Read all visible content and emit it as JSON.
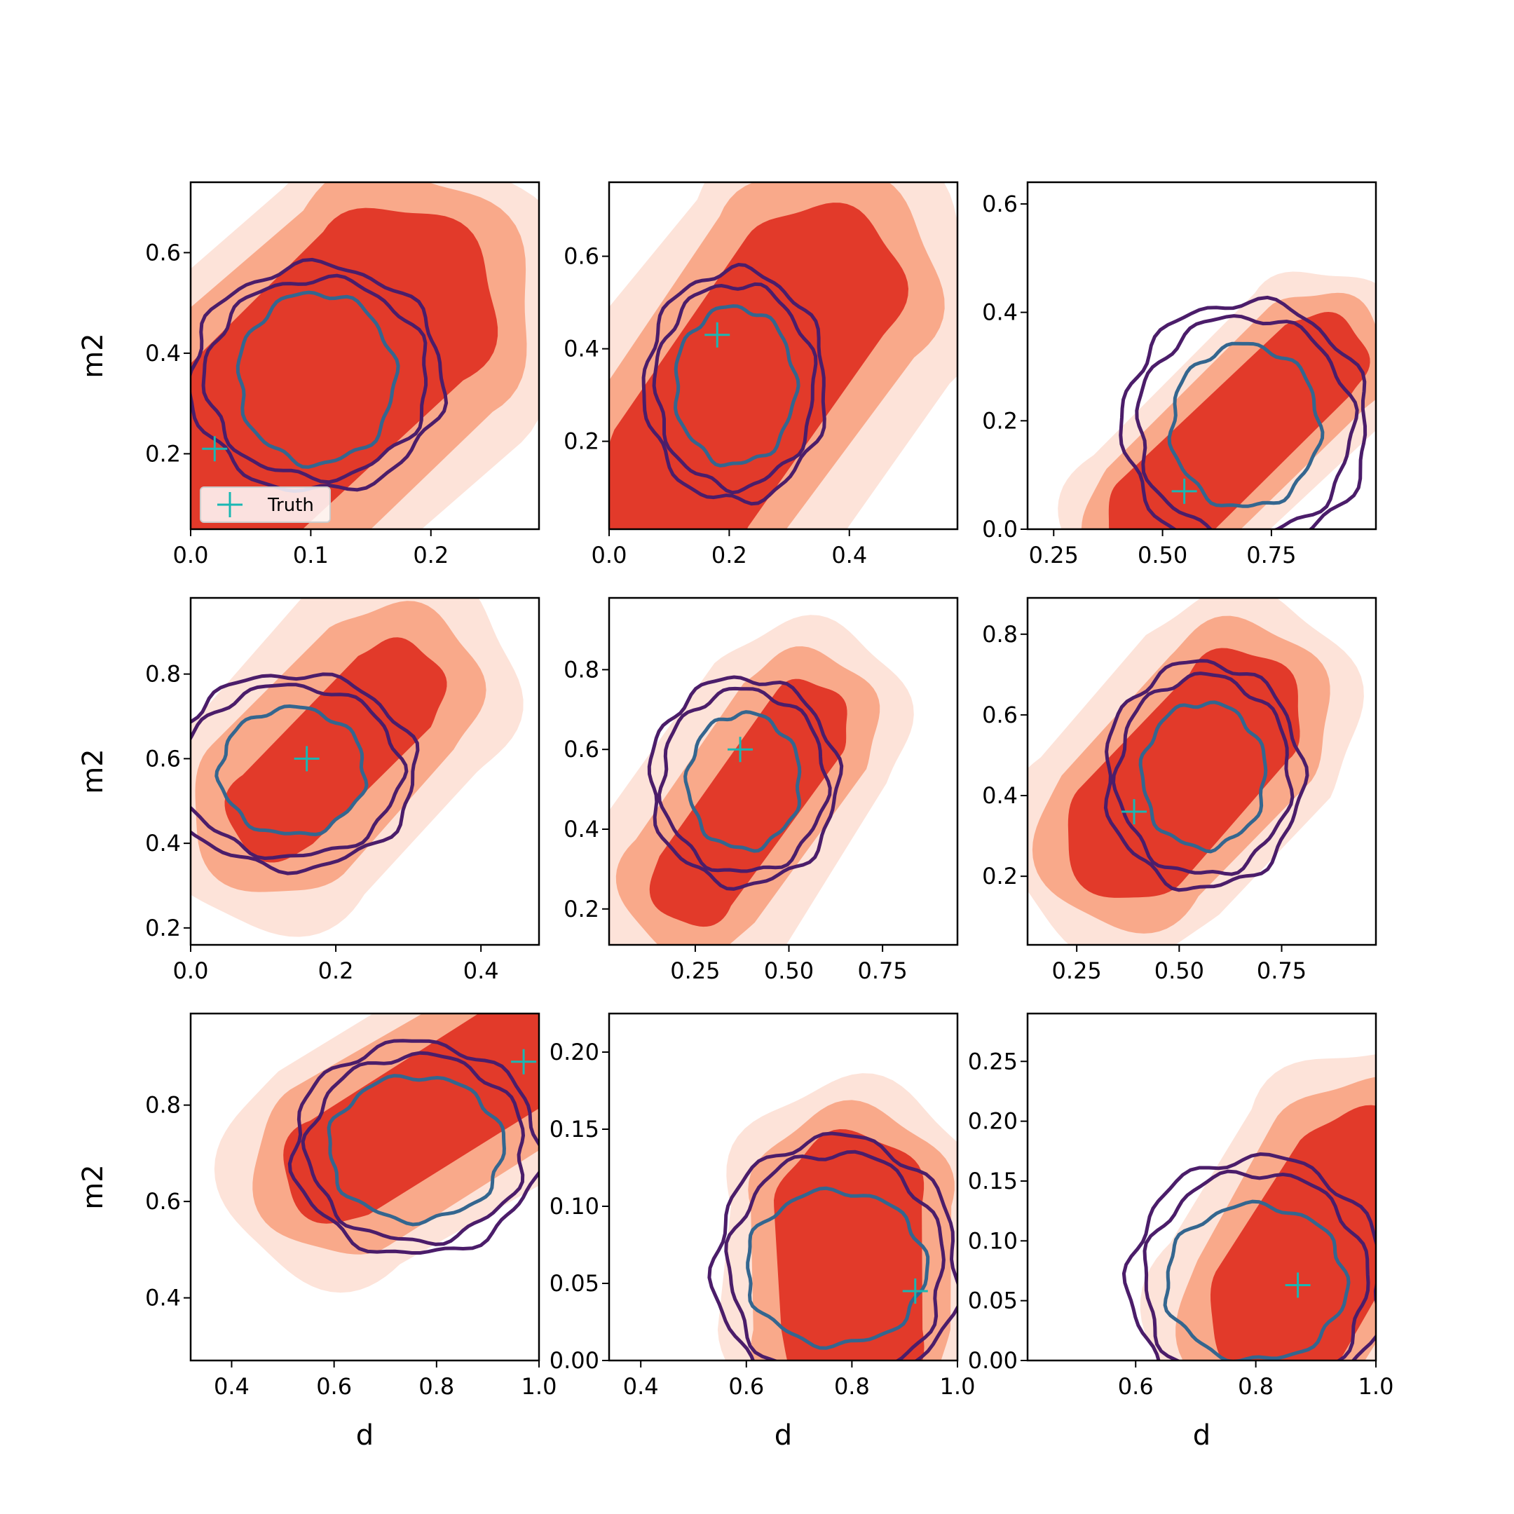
{
  "colors": {
    "fill_outer": "#fde3d9",
    "fill_mid": "#f9a98a",
    "fill_inner": "#e23a2a",
    "contour_inner": "#34668f",
    "contour_outer": "#4b1d6a",
    "truth": "#1ab7b3"
  },
  "chart_data": [
    {
      "type": "contour",
      "row": 0,
      "col": 0,
      "xlabel": "",
      "ylabel": "m2",
      "xlim": [
        0.0,
        0.29
      ],
      "ylim": [
        0.05,
        0.74
      ],
      "xticks": [
        0.0,
        0.1,
        0.2
      ],
      "xtick_labels": [
        "0.0",
        "0.1",
        "0.2"
      ],
      "yticks": [
        0.2,
        0.4,
        0.6
      ],
      "ytick_labels": [
        "0.2",
        "0.4",
        "0.6"
      ],
      "filled_region": {
        "start": [
          0.01,
          0.13
        ],
        "end": [
          0.17,
          0.49
        ],
        "width": 0.085,
        "spread": 0.03
      },
      "contours": {
        "center": [
          0.105,
          0.35
        ],
        "inner_radius": [
          0.065,
          0.17
        ],
        "outer_radius": [
          0.105,
          0.225
        ]
      },
      "truth": [
        0.02,
        0.21
      ],
      "legend": {
        "label": "Truth",
        "position": "lower-left"
      }
    },
    {
      "type": "contour",
      "row": 0,
      "col": 1,
      "xlabel": "",
      "ylabel": "",
      "xlim": [
        0.0,
        0.58
      ],
      "ylim": [
        0.01,
        0.76
      ],
      "xticks": [
        0.0,
        0.2,
        0.4
      ],
      "xtick_labels": [
        "0.0",
        "0.2",
        "0.4"
      ],
      "yticks": [
        0.2,
        0.4,
        0.6
      ],
      "ytick_labels": [
        "0.2",
        "0.4",
        "0.6"
      ],
      "filled_region": {
        "start": [
          0.12,
          0.12
        ],
        "end": [
          0.35,
          0.53
        ],
        "width": 0.14,
        "spread": 0.06
      },
      "contours": {
        "center": [
          0.21,
          0.32
        ],
        "inner_radius": [
          0.1,
          0.17
        ],
        "outer_radius": [
          0.15,
          0.25
        ]
      },
      "truth": [
        0.18,
        0.43
      ]
    },
    {
      "type": "contour",
      "row": 0,
      "col": 2,
      "xlabel": "",
      "ylabel": "",
      "xlim": [
        0.19,
        0.99
      ],
      "ylim": [
        0.0,
        0.64
      ],
      "xticks": [
        0.25,
        0.5,
        0.75
      ],
      "xtick_labels": [
        "0.25",
        "0.50",
        "0.75"
      ],
      "yticks": [
        0.0,
        0.2,
        0.4,
        0.6
      ],
      "ytick_labels": [
        "0.0",
        "0.2",
        "0.4",
        "0.6"
      ],
      "filled_region": {
        "start": [
          0.48,
          0.02
        ],
        "end": [
          0.86,
          0.31
        ],
        "width": 0.11,
        "spread": 0.05
      },
      "contours": {
        "center": [
          0.69,
          0.19
        ],
        "inner_radius": [
          0.17,
          0.15
        ],
        "outer_radius": [
          0.28,
          0.23
        ]
      },
      "truth": [
        0.55,
        0.07
      ]
    },
    {
      "type": "contour",
      "row": 1,
      "col": 0,
      "xlabel": "",
      "ylabel": "m2",
      "xlim": [
        0.0,
        0.48
      ],
      "ylim": [
        0.16,
        0.98
      ],
      "xticks": [
        0.0,
        0.2,
        0.4
      ],
      "xtick_labels": [
        "0.0",
        "0.2",
        "0.4"
      ],
      "yticks": [
        0.2,
        0.4,
        0.6,
        0.8
      ],
      "ytick_labels": [
        "0.2",
        "0.4",
        "0.6",
        "0.8"
      ],
      "filled_region": {
        "start": [
          0.12,
          0.48
        ],
        "end": [
          0.28,
          0.76
        ],
        "width": 0.07,
        "spread": 0.05
      },
      "contours": {
        "center": [
          0.14,
          0.57
        ],
        "inner_radius": [
          0.1,
          0.15
        ],
        "outer_radius": [
          0.17,
          0.23
        ]
      },
      "truth": [
        0.16,
        0.6
      ]
    },
    {
      "type": "contour",
      "row": 1,
      "col": 1,
      "xlabel": "",
      "ylabel": "",
      "xlim": [
        0.02,
        0.95
      ],
      "ylim": [
        0.11,
        0.98
      ],
      "xticks": [
        0.25,
        0.5,
        0.75
      ],
      "xtick_labels": [
        "0.25",
        "0.50",
        "0.75"
      ],
      "yticks": [
        0.2,
        0.4,
        0.6,
        0.8
      ],
      "ytick_labels": [
        "0.2",
        "0.4",
        "0.6",
        "0.8"
      ],
      "filled_region": {
        "start": [
          0.25,
          0.27
        ],
        "end": [
          0.54,
          0.66
        ],
        "width": 0.12,
        "spread": 0.08
      },
      "contours": {
        "center": [
          0.38,
          0.52
        ],
        "inner_radius": [
          0.15,
          0.17
        ],
        "outer_radius": [
          0.25,
          0.26
        ]
      },
      "truth": [
        0.37,
        0.6
      ]
    },
    {
      "type": "contour",
      "row": 1,
      "col": 2,
      "xlabel": "",
      "ylabel": "",
      "xlim": [
        0.13,
        0.98
      ],
      "ylim": [
        0.03,
        0.89
      ],
      "xticks": [
        0.25,
        0.5,
        0.75
      ],
      "xtick_labels": [
        "0.25",
        "0.50",
        "0.75"
      ],
      "yticks": [
        0.2,
        0.4,
        0.6,
        0.8
      ],
      "ytick_labels": [
        "0.2",
        "0.4",
        "0.6",
        "0.8"
      ],
      "filled_region": {
        "start": [
          0.38,
          0.3
        ],
        "end": [
          0.64,
          0.6
        ],
        "width": 0.16,
        "spread": 0.07
      },
      "contours": {
        "center": [
          0.56,
          0.45
        ],
        "inner_radius": [
          0.15,
          0.18
        ],
        "outer_radius": [
          0.24,
          0.28
        ]
      },
      "truth": [
        0.39,
        0.36
      ]
    },
    {
      "type": "contour",
      "row": 2,
      "col": 0,
      "xlabel": "d",
      "ylabel": "m2",
      "xlim": [
        0.32,
        1.0
      ],
      "ylim": [
        0.27,
        0.99
      ],
      "xticks": [
        0.4,
        0.6,
        0.8,
        1.0
      ],
      "xtick_labels": [
        "0.4",
        "0.6",
        "0.8",
        "1.0"
      ],
      "yticks": [
        0.4,
        0.6,
        0.8
      ],
      "ytick_labels": [
        "0.4",
        "0.6",
        "0.8"
      ],
      "filled_region": {
        "start": [
          0.61,
          0.67
        ],
        "end": [
          1.0,
          0.93
        ],
        "width": 0.11,
        "spread": 0.06
      },
      "contours": {
        "center": [
          0.76,
          0.71
        ],
        "inner_radius": [
          0.17,
          0.15
        ],
        "outer_radius": [
          0.24,
          0.22
        ]
      },
      "truth": [
        0.97,
        0.89
      ]
    },
    {
      "type": "contour",
      "row": 2,
      "col": 1,
      "xlabel": "d",
      "ylabel": "",
      "xlim": [
        0.34,
        1.0
      ],
      "ylim": [
        0.0,
        0.225
      ],
      "xticks": [
        0.4,
        0.6,
        0.8,
        1.0
      ],
      "xtick_labels": [
        "0.4",
        "0.6",
        "0.8",
        "1.0"
      ],
      "yticks": [
        0.0,
        0.05,
        0.1,
        0.15,
        0.2
      ],
      "ytick_labels": [
        "0.00",
        "0.05",
        "0.10",
        "0.15",
        "0.20"
      ],
      "filled_region": {
        "start": [
          0.8,
          0.02
        ],
        "end": [
          0.8,
          0.1
        ],
        "width": 0.14,
        "spread": 0.05
      },
      "contours": {
        "center": [
          0.77,
          0.06
        ],
        "inner_radius": [
          0.17,
          0.05
        ],
        "outer_radius": [
          0.23,
          0.085
        ]
      },
      "truth": [
        0.92,
        0.045
      ]
    },
    {
      "type": "contour",
      "row": 2,
      "col": 2,
      "xlabel": "d",
      "ylabel": "",
      "xlim": [
        0.42,
        1.0
      ],
      "ylim": [
        0.0,
        0.29
      ],
      "xticks": [
        0.6,
        0.8,
        1.0
      ],
      "xtick_labels": [
        "0.6",
        "0.8",
        "1.0"
      ],
      "yticks": [
        0.0,
        0.05,
        0.1,
        0.15,
        0.2,
        0.25
      ],
      "ytick_labels": [
        "0.00",
        "0.05",
        "0.10",
        "0.15",
        "0.20",
        "0.25"
      ],
      "filled_region": {
        "start": [
          0.84,
          0.04
        ],
        "end": [
          0.98,
          0.15
        ],
        "width": 0.12,
        "spread": 0.05
      },
      "contours": {
        "center": [
          0.8,
          0.065
        ],
        "inner_radius": [
          0.15,
          0.065
        ],
        "outer_radius": [
          0.21,
          0.105
        ]
      },
      "truth": [
        0.87,
        0.063
      ]
    }
  ]
}
